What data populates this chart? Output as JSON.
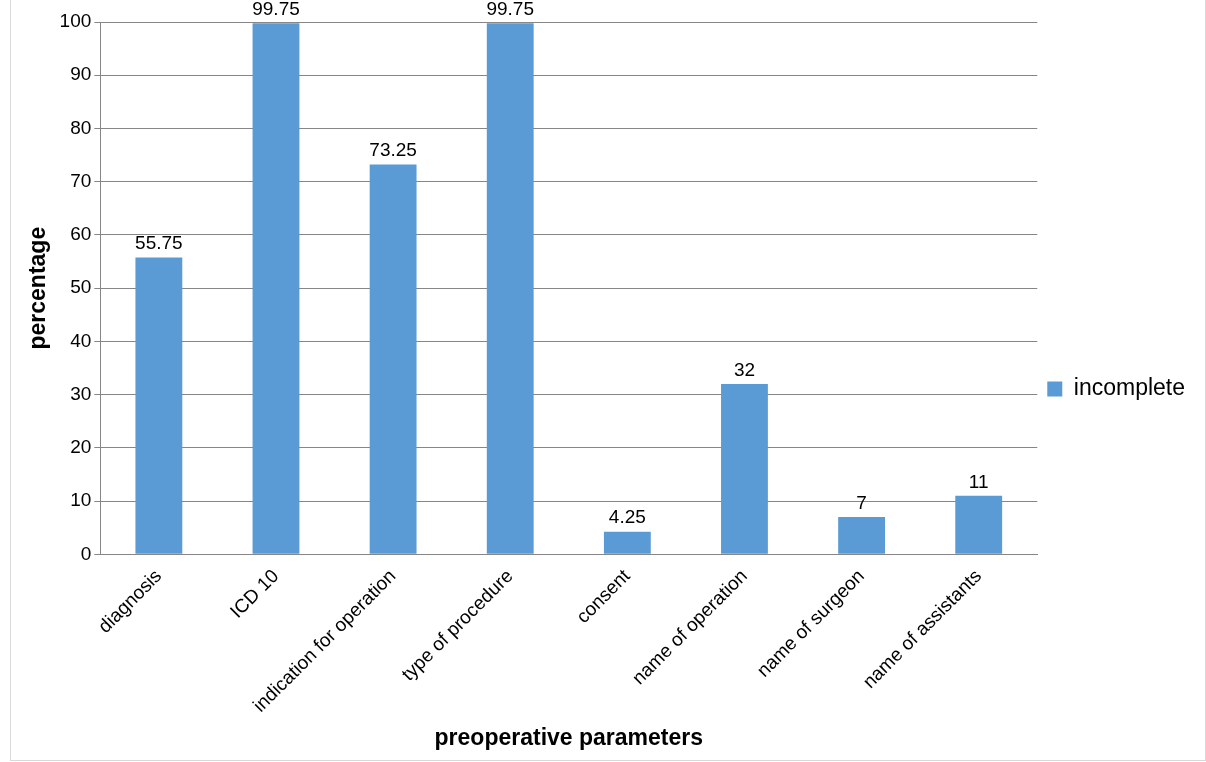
{
  "chart_data": {
    "type": "bar",
    "xlabel": "preoperative parameters",
    "ylabel": "percentage",
    "categories": [
      "diagnosis",
      "ICD 10",
      "indication for operation",
      "type of procedure",
      "consent",
      "name of operation",
      "name of surgeon",
      "name of assistants"
    ],
    "series": [
      {
        "name": "incomplete",
        "color": "#5b9bd5",
        "values": [
          55.75,
          99.75,
          73.25,
          99.75,
          4.25,
          32,
          7,
          11
        ]
      }
    ],
    "ylim": [
      0,
      100
    ],
    "yticks": [
      0,
      10,
      20,
      30,
      40,
      50,
      60,
      70,
      80,
      90,
      100
    ],
    "grid": "y",
    "legend": "right",
    "data_labels": true
  }
}
